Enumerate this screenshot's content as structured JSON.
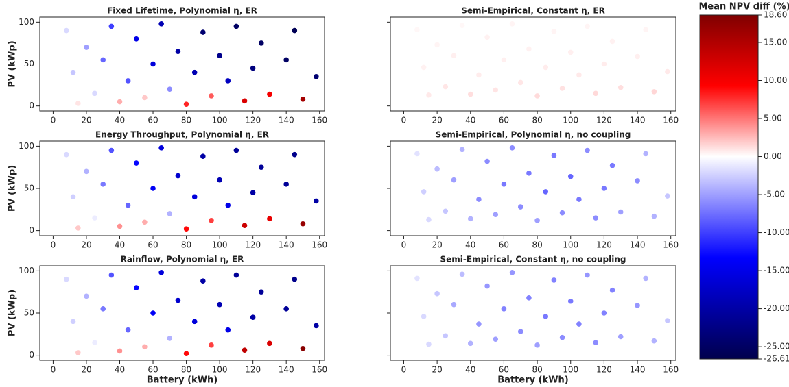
{
  "chart_data": [
    {
      "type": "scatter",
      "title": "Fixed Lifetime, Polynomial η, ER",
      "ylabel": "PV (kWp)",
      "x": [
        8,
        12,
        15,
        20,
        25,
        30,
        35,
        40,
        45,
        50,
        55,
        60,
        65,
        70,
        75,
        80,
        85,
        90,
        95,
        100,
        105,
        110,
        115,
        120,
        125,
        130,
        140,
        145,
        150,
        158
      ],
      "y": [
        90,
        40,
        3,
        70,
        15,
        55,
        95,
        5,
        30,
        80,
        10,
        50,
        98,
        20,
        65,
        2,
        40,
        88,
        12,
        60,
        30,
        95,
        6,
        45,
        75,
        14,
        55,
        90,
        8,
        35
      ],
      "values": [
        -2,
        -3,
        1,
        -5,
        -2,
        -8,
        -10,
        3,
        -9,
        -15,
        2,
        -16,
        -19,
        -6,
        -20,
        8,
        -19,
        -24,
        6,
        -22,
        -18,
        -25,
        12,
        -23,
        -25,
        10,
        -25,
        -26,
        16,
        -24
      ],
      "xlim": [
        -8,
        163
      ],
      "ylim": [
        -6,
        106
      ],
      "xticks": [
        0,
        20,
        40,
        60,
        80,
        100,
        120,
        140,
        160
      ],
      "yticks": [
        0,
        50,
        100
      ],
      "show_ytick_labels": true
    },
    {
      "type": "scatter",
      "title": "Semi-Empirical, Constant η, ER",
      "x": [
        8,
        12,
        15,
        20,
        25,
        30,
        35,
        40,
        45,
        50,
        55,
        60,
        65,
        70,
        75,
        80,
        85,
        90,
        95,
        100,
        105,
        110,
        115,
        120,
        125,
        130,
        140,
        145,
        150,
        158
      ],
      "y": [
        91,
        46,
        13,
        73,
        23,
        60,
        96,
        14,
        37,
        82,
        19,
        55,
        98,
        28,
        68,
        12,
        46,
        89,
        21,
        64,
        37,
        95,
        15,
        50,
        77,
        22,
        59,
        91,
        17,
        41
      ],
      "values": [
        0.3,
        0.5,
        0.8,
        0.4,
        0.9,
        0.6,
        0.3,
        1.2,
        0.7,
        0.5,
        1.0,
        0.6,
        0.4,
        0.9,
        0.5,
        1.3,
        0.7,
        0.4,
        1.1,
        0.6,
        0.8,
        0.4,
        1.4,
        0.7,
        0.5,
        1.2,
        0.6,
        0.4,
        1.5,
        0.8
      ],
      "xlim": [
        -8,
        163
      ],
      "ylim": [
        -6,
        106
      ],
      "xticks": [
        0,
        20,
        40,
        60,
        80,
        100,
        120,
        140,
        160
      ],
      "yticks": [
        0,
        50,
        100
      ],
      "show_ytick_labels": false
    },
    {
      "type": "scatter",
      "title": "Energy Throughput, Polynomial η, ER",
      "ylabel": "PV (kWp)",
      "x": [
        8,
        12,
        15,
        20,
        25,
        30,
        35,
        40,
        45,
        50,
        55,
        60,
        65,
        70,
        75,
        80,
        85,
        90,
        95,
        100,
        105,
        110,
        115,
        120,
        125,
        130,
        140,
        145,
        150,
        158
      ],
      "y": [
        90,
        40,
        3,
        70,
        15,
        55,
        95,
        5,
        30,
        80,
        10,
        50,
        98,
        20,
        65,
        2,
        40,
        88,
        12,
        60,
        30,
        95,
        6,
        45,
        75,
        14,
        55,
        90,
        8,
        35
      ],
      "values": [
        -2,
        -2.5,
        2,
        -4,
        -1,
        -7,
        -9,
        4,
        -8,
        -13,
        3,
        -14,
        -16,
        -4,
        -17,
        9,
        -16,
        -20,
        7,
        -19,
        -15,
        -21,
        13,
        -20,
        -21,
        11,
        -21,
        -22,
        17,
        -20
      ],
      "xlim": [
        -8,
        163
      ],
      "ylim": [
        -6,
        106
      ],
      "xticks": [
        0,
        20,
        40,
        60,
        80,
        100,
        120,
        140,
        160
      ],
      "yticks": [
        0,
        50,
        100
      ],
      "show_ytick_labels": true
    },
    {
      "type": "scatter",
      "title": "Semi-Empirical, Polynomial η, no coupling",
      "x": [
        8,
        12,
        15,
        20,
        25,
        30,
        35,
        40,
        45,
        50,
        55,
        60,
        65,
        70,
        75,
        80,
        85,
        90,
        95,
        100,
        105,
        110,
        115,
        120,
        125,
        130,
        140,
        145,
        150,
        158
      ],
      "y": [
        91,
        46,
        13,
        73,
        23,
        60,
        96,
        14,
        37,
        82,
        19,
        55,
        98,
        28,
        68,
        12,
        46,
        89,
        21,
        64,
        37,
        95,
        15,
        50,
        77,
        22,
        59,
        91,
        17,
        41
      ],
      "values": [
        -1.5,
        -2.5,
        -2,
        -3.5,
        -3,
        -5,
        -4,
        -4,
        -6,
        -6,
        -5,
        -7,
        -6,
        -6,
        -7,
        -5,
        -8,
        -7,
        -6,
        -8,
        -7,
        -6,
        -6,
        -7,
        -7,
        -5,
        -6,
        -4,
        -4,
        -3
      ],
      "xlim": [
        -8,
        163
      ],
      "ylim": [
        -6,
        106
      ],
      "xticks": [
        0,
        20,
        40,
        60,
        80,
        100,
        120,
        140,
        160
      ],
      "yticks": [
        0,
        50,
        100
      ],
      "show_ytick_labels": false
    },
    {
      "type": "scatter",
      "title": "Rainflow, Polynomial η, ER",
      "ylabel": "PV (kWp)",
      "xlabel": "Battery (kWh)",
      "x": [
        8,
        12,
        15,
        20,
        25,
        30,
        35,
        40,
        45,
        50,
        55,
        60,
        65,
        70,
        75,
        80,
        85,
        90,
        95,
        100,
        105,
        110,
        115,
        120,
        125,
        130,
        140,
        145,
        150,
        158
      ],
      "y": [
        90,
        40,
        3,
        70,
        15,
        55,
        95,
        5,
        30,
        80,
        10,
        50,
        98,
        20,
        65,
        2,
        40,
        88,
        12,
        60,
        30,
        95,
        6,
        45,
        75,
        14,
        55,
        90,
        8,
        35
      ],
      "values": [
        -2,
        -2.5,
        2,
        -4,
        -1,
        -7,
        -9,
        4,
        -8,
        -13,
        3,
        -14,
        -16,
        -4,
        -17,
        9,
        -16,
        -20,
        7,
        -19,
        -15,
        -21,
        14,
        -20,
        -21,
        12,
        -21,
        -22,
        18,
        -20
      ],
      "xlim": [
        -8,
        163
      ],
      "ylim": [
        -6,
        106
      ],
      "xticks": [
        0,
        20,
        40,
        60,
        80,
        100,
        120,
        140,
        160
      ],
      "yticks": [
        0,
        50,
        100
      ],
      "show_ytick_labels": true
    },
    {
      "type": "scatter",
      "title": "Semi-Empirical, Constant η, no coupling",
      "xlabel": "Battery (kWh)",
      "x": [
        8,
        12,
        15,
        20,
        25,
        30,
        35,
        40,
        45,
        50,
        55,
        60,
        65,
        70,
        75,
        80,
        85,
        90,
        95,
        100,
        105,
        110,
        115,
        120,
        125,
        130,
        140,
        145,
        150,
        158
      ],
      "y": [
        91,
        46,
        13,
        73,
        23,
        60,
        96,
        14,
        37,
        82,
        19,
        55,
        98,
        28,
        68,
        12,
        46,
        89,
        21,
        64,
        37,
        95,
        15,
        50,
        77,
        22,
        59,
        91,
        17,
        41
      ],
      "values": [
        -1.5,
        -2,
        -2,
        -3,
        -3,
        -4.5,
        -3.5,
        -4,
        -5.5,
        -5.5,
        -5,
        -6.5,
        -5.5,
        -6,
        -6.5,
        -5,
        -7,
        -6.5,
        -6,
        -7,
        -6.5,
        -5.5,
        -6,
        -6.5,
        -6.5,
        -5,
        -5.5,
        -4,
        -4,
        -3
      ],
      "xlim": [
        -8,
        163
      ],
      "ylim": [
        -6,
        106
      ],
      "xticks": [
        0,
        20,
        40,
        60,
        80,
        100,
        120,
        140,
        160
      ],
      "yticks": [
        0,
        50,
        100
      ],
      "show_ytick_labels": false
    }
  ],
  "colorbar": {
    "title": "Mean NPV diff (%)",
    "cmap": "seismic",
    "clim": [
      -26.61,
      18.6
    ],
    "ticks": [
      {
        "value": 18.6,
        "label": "18.60"
      },
      {
        "value": 15,
        "label": "15.00"
      },
      {
        "value": 10,
        "label": "10.00"
      },
      {
        "value": 5,
        "label": "5.00"
      },
      {
        "value": 0,
        "label": "0.00"
      },
      {
        "value": -5,
        "label": "-5.00"
      },
      {
        "value": -10,
        "label": "-10.00"
      },
      {
        "value": -15,
        "label": "-15.00"
      },
      {
        "value": -20,
        "label": "-20.00"
      },
      {
        "value": -25,
        "label": "-25.00"
      },
      {
        "value": -26.61,
        "label": "-26.61"
      }
    ]
  }
}
